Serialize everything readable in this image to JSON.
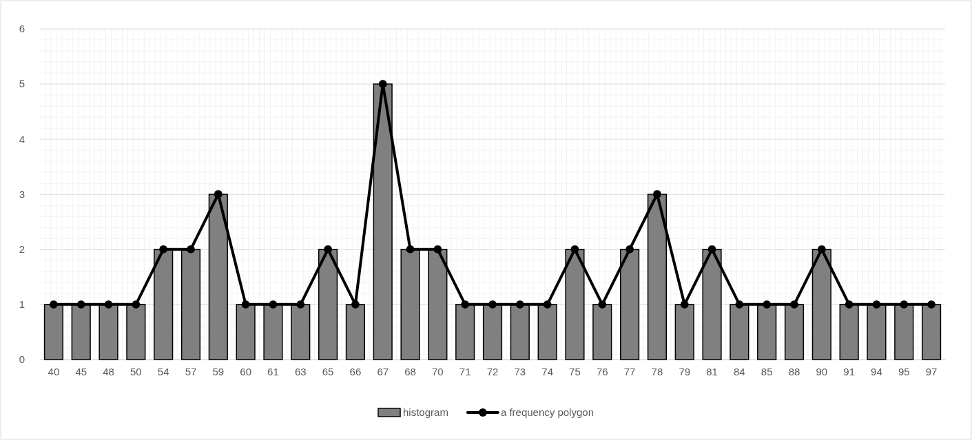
{
  "chart_data": {
    "type": "bar",
    "categories": [
      "40",
      "45",
      "48",
      "50",
      "54",
      "57",
      "59",
      "60",
      "61",
      "63",
      "65",
      "66",
      "67",
      "68",
      "70",
      "71",
      "72",
      "73",
      "74",
      "75",
      "76",
      "77",
      "78",
      "79",
      "81",
      "84",
      "85",
      "88",
      "90",
      "91",
      "94",
      "95",
      "97"
    ],
    "series": [
      {
        "name": "histogram",
        "color": "#808080",
        "values": [
          1,
          1,
          1,
          1,
          2,
          2,
          3,
          1,
          1,
          1,
          2,
          1,
          5,
          2,
          2,
          1,
          1,
          1,
          1,
          2,
          1,
          2,
          3,
          1,
          2,
          1,
          1,
          1,
          2,
          1,
          1,
          1,
          1
        ]
      },
      {
        "name": "a frequency polygon",
        "type": "line",
        "color": "#000000",
        "marker": "circle",
        "line_style": "solid",
        "values": [
          1,
          1,
          1,
          1,
          2,
          2,
          3,
          1,
          1,
          1,
          2,
          1,
          5,
          2,
          2,
          1,
          1,
          1,
          1,
          2,
          1,
          2,
          3,
          1,
          2,
          1,
          1,
          1,
          2,
          1,
          1,
          1,
          1
        ]
      }
    ],
    "ylim": [
      0,
      6
    ],
    "yticks": [
      0,
      1,
      2,
      3,
      4,
      5,
      6
    ],
    "grid": true,
    "legend": "bottom"
  }
}
